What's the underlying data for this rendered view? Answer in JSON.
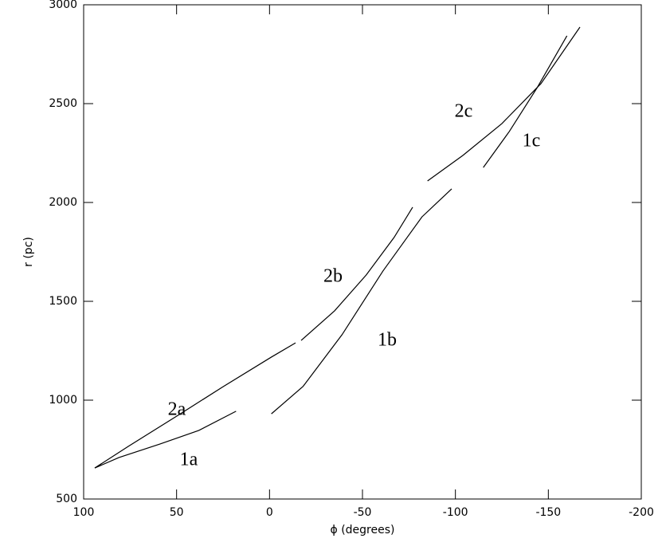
{
  "chart_data": {
    "type": "line",
    "xlabel": "ϕ (degrees)",
    "ylabel": "r (pc)",
    "xlim": [
      100,
      -200
    ],
    "ylim": [
      500,
      3000
    ],
    "xticks": [
      100,
      50,
      0,
      -50,
      -100,
      -150,
      -200
    ],
    "yticks": [
      500,
      1000,
      1500,
      2000,
      2500,
      3000
    ],
    "series": [
      {
        "color": "#000000",
        "x": [
          94,
          76,
          50,
          25,
          -1,
          -14
        ],
        "values": [
          657,
          766,
          919,
          1068,
          1218,
          1290
        ]
      },
      {
        "color": "#000000",
        "x": [
          -17,
          -35,
          -52,
          -67,
          -77
        ],
        "values": [
          1302,
          1452,
          1633,
          1823,
          1976
        ]
      },
      {
        "color": "#000000",
        "x": [
          -85,
          -104,
          -125,
          -146,
          -167
        ],
        "values": [
          2109,
          2238,
          2399,
          2601,
          2887
        ]
      },
      {
        "color": "#000000",
        "x": [
          94,
          81,
          59,
          38,
          18
        ],
        "values": [
          657,
          710,
          778,
          847,
          944
        ]
      },
      {
        "color": "#000000",
        "x": [
          -1,
          -18,
          -39,
          -61,
          -82,
          -98
        ],
        "values": [
          931,
          1069,
          1331,
          1653,
          1927,
          2069
        ]
      },
      {
        "color": "#000000",
        "x": [
          -115,
          -129,
          -144,
          -160
        ],
        "values": [
          2177,
          2359,
          2581,
          2843
        ]
      }
    ],
    "annotations": [
      "2a",
      "1a",
      "2b",
      "1b",
      "2c",
      "1c"
    ]
  }
}
